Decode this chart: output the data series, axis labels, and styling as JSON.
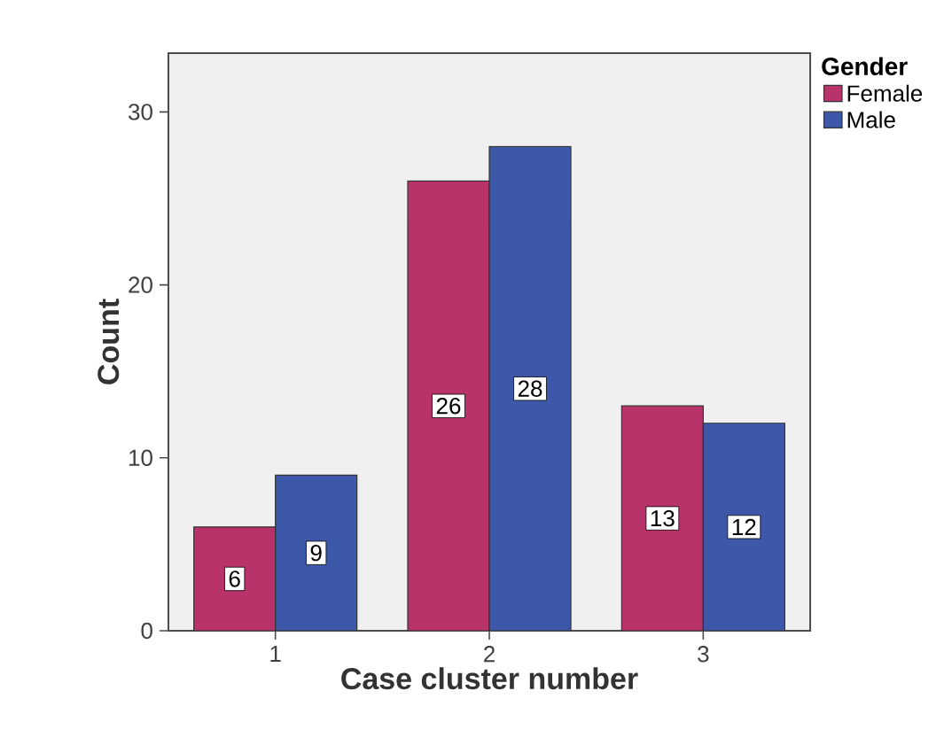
{
  "chart_data": {
    "type": "bar",
    "xlabel": "Case cluster number",
    "ylabel": "Count",
    "legend_title": "Gender",
    "categories": [
      "1",
      "2",
      "3"
    ],
    "series": [
      {
        "name": "Female",
        "color": "#b8336a",
        "values": [
          6,
          26,
          13
        ]
      },
      {
        "name": "Male",
        "color": "#3d58a8",
        "values": [
          9,
          28,
          12
        ]
      }
    ],
    "ylim": [
      0,
      33.4
    ],
    "yticks": [
      0,
      10,
      20,
      30
    ],
    "data_labels": true,
    "legend": "right",
    "grid": false
  }
}
